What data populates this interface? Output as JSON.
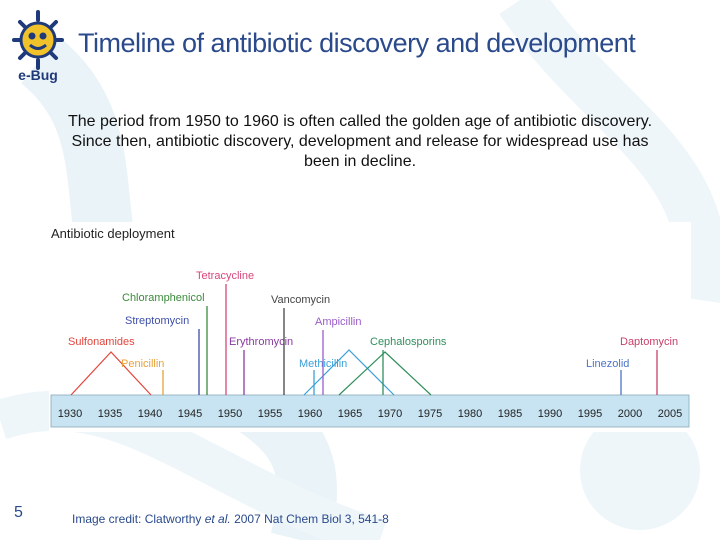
{
  "logo": {
    "text": "e-Bug",
    "icon": "bug-face-icon"
  },
  "title": "Timeline of antibiotic discovery and development",
  "body_text": "The period from 1950 to 1960 is often called the golden age of antibiotic discovery. Since then, antibiotic discovery, development and release for widespread use has been in decline.",
  "page_number": "5",
  "credit": {
    "prefix": "Image credit: Clatworthy ",
    "italic": "et al.",
    "suffix": " 2007 Nat Chem Biol 3, 541-8"
  },
  "diagram": {
    "title": "Antibiotic deployment",
    "axis_years": [
      "1930",
      "1935",
      "1940",
      "1945",
      "1950",
      "1955",
      "1960",
      "1965",
      "1970",
      "1975",
      "1980",
      "1985",
      "1990",
      "1995",
      "2000",
      "2005"
    ],
    "drugs": [
      {
        "name": "Sulfonamides",
        "color": "#e2453c"
      },
      {
        "name": "Penicillin",
        "color": "#e8a23a"
      },
      {
        "name": "Streptomycin",
        "color": "#3d4fa8"
      },
      {
        "name": "Chloramphenicol",
        "color": "#3a8a3a"
      },
      {
        "name": "Tetracycline",
        "color": "#d9467a"
      },
      {
        "name": "Erythromycin",
        "color": "#8a3aa0"
      },
      {
        "name": "Vancomycin",
        "color": "#444444"
      },
      {
        "name": "Methicillin",
        "color": "#3aa0d8"
      },
      {
        "name": "Ampicillin",
        "color": "#9a5cc8"
      },
      {
        "name": "Cephalosporins",
        "color": "#2f8f5b"
      },
      {
        "name": "Linezolid",
        "color": "#4a74c8"
      },
      {
        "name": "Daptomycin",
        "color": "#c8406a"
      }
    ]
  }
}
